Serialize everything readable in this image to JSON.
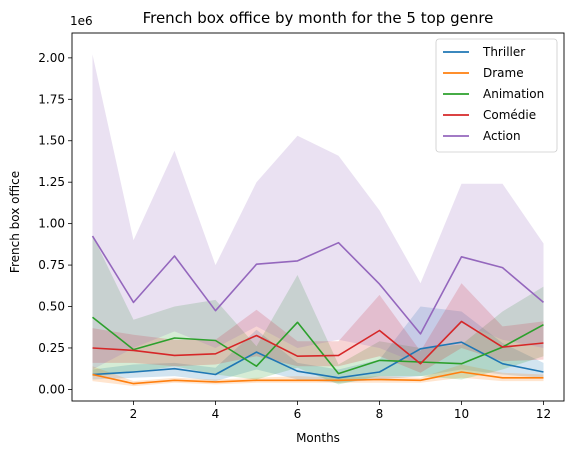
{
  "chart_data": {
    "type": "line",
    "title": "French box office by month for the 5 top genre",
    "xlabel": "Months",
    "ylabel": "French box office",
    "offset_label": "1e6",
    "x": [
      1,
      2,
      3,
      4,
      5,
      6,
      7,
      8,
      9,
      10,
      11,
      12
    ],
    "xlim": [
      0.5,
      12.5
    ],
    "ylim": [
      -0.07,
      2.15
    ],
    "x_ticks": [
      2,
      4,
      6,
      8,
      10,
      12
    ],
    "y_ticks": [
      0.0,
      0.25,
      0.5,
      0.75,
      1.0,
      1.25,
      1.5,
      1.75,
      2.0
    ],
    "y_tick_labels": [
      "0.00",
      "0.25",
      "0.50",
      "0.75",
      "1.00",
      "1.25",
      "1.50",
      "1.75",
      "2.00"
    ],
    "grid": false,
    "legend_position": "top-right",
    "series": [
      {
        "name": "Thriller",
        "color": "#1f77b4",
        "values": [
          0.09,
          0.105,
          0.125,
          0.09,
          0.225,
          0.11,
          0.07,
          0.105,
          0.245,
          0.285,
          0.155,
          0.105
        ],
        "ci_low": [
          0.06,
          0.07,
          0.08,
          0.05,
          0.12,
          0.06,
          0.04,
          0.06,
          0.08,
          0.12,
          0.09,
          0.07
        ],
        "ci_high": [
          0.12,
          0.15,
          0.16,
          0.13,
          0.36,
          0.16,
          0.12,
          0.18,
          0.5,
          0.47,
          0.28,
          0.16
        ]
      },
      {
        "name": "Drame",
        "color": "#ff7f0e",
        "values": [
          0.09,
          0.035,
          0.055,
          0.045,
          0.055,
          0.055,
          0.055,
          0.06,
          0.055,
          0.105,
          0.07,
          0.07
        ],
        "ci_low": [
          0.05,
          0.02,
          0.04,
          0.03,
          0.04,
          0.04,
          0.04,
          0.04,
          0.04,
          0.07,
          0.05,
          0.05
        ],
        "ci_high": [
          0.14,
          0.05,
          0.07,
          0.06,
          0.07,
          0.08,
          0.07,
          0.08,
          0.07,
          0.15,
          0.1,
          0.09
        ]
      },
      {
        "name": "Animation",
        "color": "#2ca02c",
        "values": [
          0.435,
          0.24,
          0.31,
          0.295,
          0.14,
          0.405,
          0.095,
          0.175,
          0.165,
          0.155,
          0.255,
          0.39
        ],
        "ci_low": [
          0.08,
          0.1,
          0.14,
          0.09,
          0.06,
          0.13,
          0.03,
          0.08,
          0.08,
          0.06,
          0.12,
          0.2
        ],
        "ci_high": [
          0.93,
          0.42,
          0.5,
          0.54,
          0.26,
          0.69,
          0.15,
          0.29,
          0.25,
          0.27,
          0.47,
          0.62
        ]
      },
      {
        "name": "Comédie",
        "color": "#d62728",
        "values": [
          0.25,
          0.235,
          0.205,
          0.215,
          0.325,
          0.2,
          0.205,
          0.355,
          0.155,
          0.41,
          0.255,
          0.28
        ],
        "ci_low": [
          0.16,
          0.16,
          0.14,
          0.15,
          0.2,
          0.14,
          0.14,
          0.2,
          0.1,
          0.25,
          0.17,
          0.18
        ],
        "ci_high": [
          0.37,
          0.33,
          0.3,
          0.3,
          0.48,
          0.29,
          0.29,
          0.57,
          0.23,
          0.64,
          0.38,
          0.41
        ]
      },
      {
        "name": "Action",
        "color": "#9467bd",
        "values": [
          0.925,
          0.525,
          0.805,
          0.475,
          0.755,
          0.775,
          0.885,
          0.635,
          0.335,
          0.8,
          0.735,
          0.525
        ],
        "ci_low": [
          0.12,
          0.25,
          0.35,
          0.25,
          0.38,
          0.25,
          0.3,
          0.25,
          0.15,
          0.4,
          0.3,
          0.25
        ],
        "ci_high": [
          2.02,
          0.9,
          1.44,
          0.75,
          1.25,
          1.53,
          1.41,
          1.08,
          0.64,
          1.24,
          1.24,
          0.88
        ]
      }
    ]
  }
}
